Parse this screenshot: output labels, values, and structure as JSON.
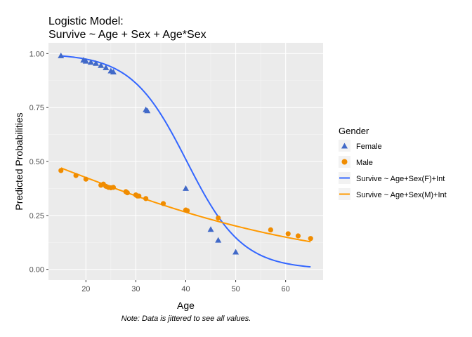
{
  "chart_data": {
    "type": "scatter",
    "title_line1": "Logistic Model:",
    "title_line2": "Survive ~ Age + Sex + Age*Sex",
    "xlabel": "Age",
    "ylabel": "Predicted Probabilities",
    "caption": "Note: Data is jittered to see all values.",
    "xlim": [
      12.5,
      67.5
    ],
    "ylim": [
      -0.05,
      1.05
    ],
    "x_ticks": [
      20,
      30,
      40,
      50,
      60
    ],
    "y_ticks": [
      0.0,
      0.25,
      0.5,
      0.75,
      1.0
    ],
    "x_tick_labels": [
      "20",
      "30",
      "40",
      "50",
      "60"
    ],
    "y_tick_labels": [
      "0.00",
      "0.25",
      "0.50",
      "0.75",
      "1.00"
    ],
    "grid": true,
    "legend": {
      "title": "Gender",
      "position": "right",
      "entries": [
        {
          "label": "Female",
          "kind": "triangle",
          "color": "#4169c8"
        },
        {
          "label": "Male",
          "kind": "circle",
          "color": "#f08c00"
        },
        {
          "label": "Survive ~ Age+Sex(F)+Int",
          "kind": "line",
          "color": "#3366ff"
        },
        {
          "label": "Survive ~ Age+Sex(M)+Int",
          "kind": "line",
          "color": "#ff9900"
        }
      ]
    },
    "curves": [
      {
        "name": "Survive ~ Age+Sex(F)+Int",
        "color": "#3366ff",
        "b0": 7.24,
        "b1": -0.18,
        "x_range": [
          15,
          65
        ]
      },
      {
        "name": "Survive ~ Age+Sex(M)+Int",
        "color": "#ff9900",
        "b0": 0.42,
        "b1": -0.036,
        "x_range": [
          15,
          65
        ]
      }
    ],
    "series": [
      {
        "name": "Female",
        "marker": "triangle",
        "color": "#4169c8",
        "points": [
          [
            15,
            0.99
          ],
          [
            19.5,
            0.97
          ],
          [
            20,
            0.965
          ],
          [
            21,
            0.96
          ],
          [
            22,
            0.955
          ],
          [
            23,
            0.945
          ],
          [
            24,
            0.935
          ],
          [
            25,
            0.92
          ],
          [
            25.5,
            0.915
          ],
          [
            32,
            0.74
          ],
          [
            32.3,
            0.735
          ],
          [
            40,
            0.375
          ],
          [
            45,
            0.185
          ],
          [
            46.5,
            0.135
          ],
          [
            50,
            0.08
          ]
        ]
      },
      {
        "name": "Male",
        "marker": "circle",
        "color": "#f08c00",
        "points": [
          [
            15,
            0.458
          ],
          [
            18,
            0.435
          ],
          [
            20,
            0.418
          ],
          [
            23,
            0.39
          ],
          [
            23.5,
            0.395
          ],
          [
            24,
            0.385
          ],
          [
            24.5,
            0.38
          ],
          [
            25,
            0.378
          ],
          [
            25.5,
            0.38
          ],
          [
            28,
            0.36
          ],
          [
            28.3,
            0.355
          ],
          [
            30,
            0.345
          ],
          [
            30.3,
            0.34
          ],
          [
            30.6,
            0.34
          ],
          [
            32,
            0.328
          ],
          [
            35.5,
            0.305
          ],
          [
            40,
            0.275
          ],
          [
            40.3,
            0.272
          ],
          [
            46.5,
            0.238
          ],
          [
            57,
            0.183
          ],
          [
            60.5,
            0.165
          ],
          [
            62.5,
            0.155
          ],
          [
            65,
            0.143
          ]
        ]
      }
    ]
  }
}
